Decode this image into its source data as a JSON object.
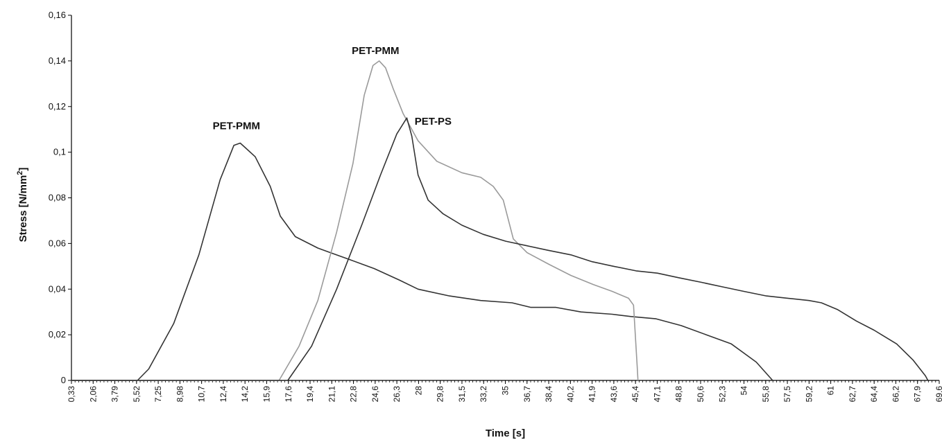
{
  "chart_data": {
    "type": "line",
    "title": "",
    "xlabel": "Time [s]",
    "ylabel_main": "Stress [N/mm",
    "ylabel_sup": "2",
    "ylabel_close": "]",
    "ylim": [
      0,
      0.16
    ],
    "xlim": [
      0.33,
      69.6
    ],
    "grid": false,
    "legend": "none",
    "y_ticks": [
      {
        "value": 0,
        "label": "0"
      },
      {
        "value": 0.02,
        "label": "0,02"
      },
      {
        "value": 0.04,
        "label": "0,04"
      },
      {
        "value": 0.06,
        "label": "0,06"
      },
      {
        "value": 0.08,
        "label": "0,08"
      },
      {
        "value": 0.1,
        "label": "0,1"
      },
      {
        "value": 0.12,
        "label": "0,12"
      },
      {
        "value": 0.14,
        "label": "0,14"
      },
      {
        "value": 0.16,
        "label": "0,16"
      }
    ],
    "x_tick_labels": [
      "0,33",
      "2,06",
      "3,79",
      "5,52",
      "7,25",
      "8,98",
      "10,7",
      "12,4",
      "14,2",
      "15,9",
      "17,6",
      "19,4",
      "21,1",
      "22,8",
      "24,6",
      "26,3",
      "28",
      "29,8",
      "31,5",
      "33,2",
      "35",
      "36,7",
      "38,4",
      "40,2",
      "41,9",
      "43,6",
      "45,4",
      "47,1",
      "48,8",
      "50,6",
      "52,3",
      "54",
      "55,8",
      "57,5",
      "59,2",
      "61",
      "62,7",
      "64,4",
      "66,2",
      "67,9",
      "69,6"
    ],
    "series": [
      {
        "label": "PET-PMM",
        "label_at": [
          13.5,
          0.11
        ],
        "color": "#333333",
        "points": [
          [
            0.33,
            0
          ],
          [
            5.6,
            0
          ],
          [
            6.5,
            0.005
          ],
          [
            8.5,
            0.025
          ],
          [
            10.5,
            0.055
          ],
          [
            12.2,
            0.088
          ],
          [
            13.3,
            0.103
          ],
          [
            13.8,
            0.104
          ],
          [
            14.2,
            0.102
          ],
          [
            15.0,
            0.098
          ],
          [
            16.2,
            0.085
          ],
          [
            17.0,
            0.072
          ],
          [
            18.2,
            0.063
          ],
          [
            20.0,
            0.058
          ],
          [
            21.0,
            0.056
          ],
          [
            22.5,
            0.053
          ],
          [
            24.5,
            0.049
          ],
          [
            26.5,
            0.044
          ],
          [
            28.0,
            0.04
          ],
          [
            30.5,
            0.037
          ],
          [
            33.0,
            0.035
          ],
          [
            35.5,
            0.034
          ],
          [
            37.0,
            0.032
          ],
          [
            39.0,
            0.032
          ],
          [
            41.0,
            0.03
          ],
          [
            43.5,
            0.029
          ],
          [
            45.0,
            0.028
          ],
          [
            47.0,
            0.027
          ],
          [
            49.0,
            0.024
          ],
          [
            51.0,
            0.02
          ],
          [
            53.0,
            0.016
          ],
          [
            55.0,
            0.008
          ],
          [
            56.3,
            0
          ]
        ]
      },
      {
        "label": "PET-PMM",
        "label_at": [
          24.6,
          0.143
        ],
        "color": "#9a9a9a",
        "points": [
          [
            0.33,
            0
          ],
          [
            16.9,
            0
          ],
          [
            18.5,
            0.015
          ],
          [
            20.0,
            0.035
          ],
          [
            21.5,
            0.065
          ],
          [
            22.8,
            0.095
          ],
          [
            23.7,
            0.125
          ],
          [
            24.4,
            0.138
          ],
          [
            24.9,
            0.14
          ],
          [
            25.4,
            0.137
          ],
          [
            26.0,
            0.128
          ],
          [
            26.8,
            0.117
          ],
          [
            28.0,
            0.105
          ],
          [
            29.5,
            0.096
          ],
          [
            31.5,
            0.091
          ],
          [
            33.0,
            0.089
          ],
          [
            34.0,
            0.085
          ],
          [
            34.8,
            0.079
          ],
          [
            35.6,
            0.062
          ],
          [
            36.7,
            0.056
          ],
          [
            38.4,
            0.051
          ],
          [
            40.2,
            0.046
          ],
          [
            42.0,
            0.042
          ],
          [
            43.5,
            0.039
          ],
          [
            44.8,
            0.036
          ],
          [
            45.2,
            0.033
          ],
          [
            45.5,
            0.005
          ],
          [
            45.55,
            0
          ]
        ]
      },
      {
        "label": "PET-PS",
        "label_at": [
          29.2,
          0.112
        ],
        "color": "#333333",
        "points": [
          [
            0.33,
            0
          ],
          [
            17.6,
            0
          ],
          [
            19.5,
            0.015
          ],
          [
            21.5,
            0.04
          ],
          [
            23.5,
            0.068
          ],
          [
            25.0,
            0.09
          ],
          [
            26.3,
            0.108
          ],
          [
            27.1,
            0.115
          ],
          [
            27.5,
            0.107
          ],
          [
            28.0,
            0.09
          ],
          [
            28.8,
            0.079
          ],
          [
            30.0,
            0.073
          ],
          [
            31.5,
            0.068
          ],
          [
            33.2,
            0.064
          ],
          [
            35.0,
            0.061
          ],
          [
            36.7,
            0.059
          ],
          [
            38.4,
            0.057
          ],
          [
            40.2,
            0.055
          ],
          [
            41.9,
            0.052
          ],
          [
            43.6,
            0.05
          ],
          [
            45.4,
            0.048
          ],
          [
            47.1,
            0.047
          ],
          [
            48.8,
            0.045
          ],
          [
            50.6,
            0.043
          ],
          [
            52.3,
            0.041
          ],
          [
            54.0,
            0.039
          ],
          [
            55.8,
            0.037
          ],
          [
            57.5,
            0.036
          ],
          [
            59.2,
            0.035
          ],
          [
            60.2,
            0.034
          ],
          [
            61.5,
            0.031
          ],
          [
            63.0,
            0.026
          ],
          [
            64.4,
            0.022
          ],
          [
            66.2,
            0.016
          ],
          [
            67.5,
            0.009
          ],
          [
            68.5,
            0.002
          ],
          [
            68.7,
            0
          ]
        ]
      }
    ]
  }
}
